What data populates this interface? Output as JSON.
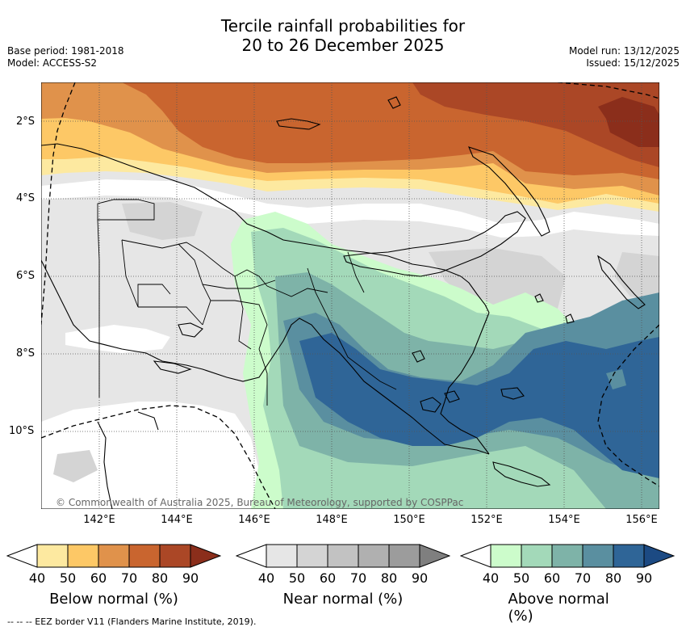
{
  "title": {
    "line1": "Tercile rainfall probabilities for",
    "line2": "20 to 26 December 2025"
  },
  "meta_left": {
    "base_period": "Base period: 1981-2018",
    "model": "Model: ACCESS-S2"
  },
  "meta_right": {
    "model_run": "Model run: 13/12/2025",
    "issued": "Issued: 15/12/2025"
  },
  "map": {
    "copyright": "© Commonwealth of Australia 2025, Bureau of Meteorology, supported by COSPPac",
    "lat_labels": [
      "2°S",
      "4°S",
      "6°S",
      "8°S",
      "10°S"
    ],
    "lon_labels": [
      "142°E",
      "144°E",
      "146°E",
      "148°E",
      "150°E",
      "152°E",
      "154°E",
      "156°E"
    ]
  },
  "colorbars": [
    {
      "label": "Below normal (%)",
      "ticks": [
        "40",
        "50",
        "60",
        "70",
        "80",
        "90"
      ],
      "colors": [
        "#ffffff",
        "#fde9a0",
        "#fdc866",
        "#e0924b",
        "#c9652f",
        "#ab4726",
        "#8b2e1b"
      ]
    },
    {
      "label": "Near normal (%)",
      "ticks": [
        "40",
        "50",
        "60",
        "70",
        "80",
        "90"
      ],
      "colors": [
        "#ffffff",
        "#e6e6e6",
        "#d4d4d4",
        "#c2c2c2",
        "#b0b0b0",
        "#9c9c9c",
        "#7f7f7f"
      ]
    },
    {
      "label": "Above normal (%)",
      "ticks": [
        "40",
        "50",
        "60",
        "70",
        "80",
        "90"
      ],
      "colors": [
        "#ffffff",
        "#ccfccb",
        "#a3d9b9",
        "#7eb3a8",
        "#5a8fa0",
        "#2f6597",
        "#1c4a83"
      ]
    }
  ],
  "footnote": "-- -- -- EEZ border V11 (Flanders Marine Institute, 2019)."
}
